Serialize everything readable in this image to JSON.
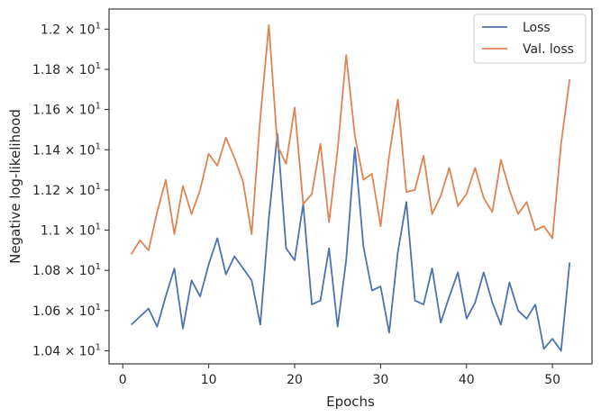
{
  "chart_data": {
    "type": "line",
    "title": "",
    "xlabel": "Epochs",
    "ylabel": "Negative log-likelihood",
    "xlim": [
      -1.6,
      54.6
    ],
    "ylim": [
      10.335,
      12.1
    ],
    "x_ticks": [
      0,
      10,
      20,
      30,
      40,
      50
    ],
    "y_ticks": [
      {
        "value": 10.4,
        "mantissa": "1.04",
        "exp": "1"
      },
      {
        "value": 10.6,
        "mantissa": "1.06",
        "exp": "1"
      },
      {
        "value": 10.8,
        "mantissa": "1.08",
        "exp": "1"
      },
      {
        "value": 11.0,
        "mantissa": "1.1",
        "exp": "1"
      },
      {
        "value": 11.2,
        "mantissa": "1.12",
        "exp": "1"
      },
      {
        "value": 11.4,
        "mantissa": "1.14",
        "exp": "1"
      },
      {
        "value": 11.6,
        "mantissa": "1.16",
        "exp": "1"
      },
      {
        "value": 11.8,
        "mantissa": "1.18",
        "exp": "1"
      },
      {
        "value": 12.0,
        "mantissa": "1.2",
        "exp": "1"
      }
    ],
    "grid": false,
    "legend_position": "top-right",
    "x": [
      1,
      2,
      3,
      4,
      5,
      6,
      7,
      8,
      9,
      10,
      11,
      12,
      13,
      14,
      15,
      16,
      17,
      18,
      19,
      20,
      21,
      22,
      23,
      24,
      25,
      26,
      27,
      28,
      29,
      30,
      31,
      32,
      33,
      34,
      35,
      36,
      37,
      38,
      39,
      40,
      41,
      42,
      43,
      44,
      45,
      46,
      47,
      48,
      49,
      50,
      51,
      52
    ],
    "series": [
      {
        "name": "Loss",
        "color": "#4c72b0",
        "values": [
          10.53,
          10.57,
          10.61,
          10.52,
          10.67,
          10.81,
          10.51,
          10.75,
          10.67,
          10.83,
          10.96,
          10.78,
          10.87,
          10.81,
          10.75,
          10.53,
          11.06,
          11.48,
          10.91,
          10.85,
          11.13,
          10.63,
          10.65,
          10.91,
          10.52,
          10.85,
          11.41,
          10.92,
          10.7,
          10.72,
          10.49,
          10.89,
          11.14,
          10.65,
          10.63,
          10.81,
          10.54,
          10.67,
          10.79,
          10.56,
          10.64,
          10.79,
          10.64,
          10.53,
          10.74,
          10.6,
          10.56,
          10.63,
          10.41,
          10.46,
          10.4,
          10.84
        ]
      },
      {
        "name": "Val. loss",
        "color": "#dd8452",
        "values": [
          10.88,
          10.95,
          10.9,
          11.09,
          11.25,
          10.98,
          11.22,
          11.08,
          11.2,
          11.38,
          11.32,
          11.46,
          11.36,
          11.24,
          10.98,
          11.56,
          12.02,
          11.42,
          11.33,
          11.61,
          11.13,
          11.18,
          11.43,
          11.04,
          11.4,
          11.87,
          11.47,
          11.25,
          11.28,
          11.02,
          11.37,
          11.65,
          11.19,
          11.2,
          11.37,
          11.08,
          11.17,
          11.31,
          11.12,
          11.18,
          11.31,
          11.16,
          11.09,
          11.35,
          11.2,
          11.08,
          11.14,
          11.0,
          11.02,
          10.96,
          11.43,
          11.75
        ]
      }
    ]
  }
}
